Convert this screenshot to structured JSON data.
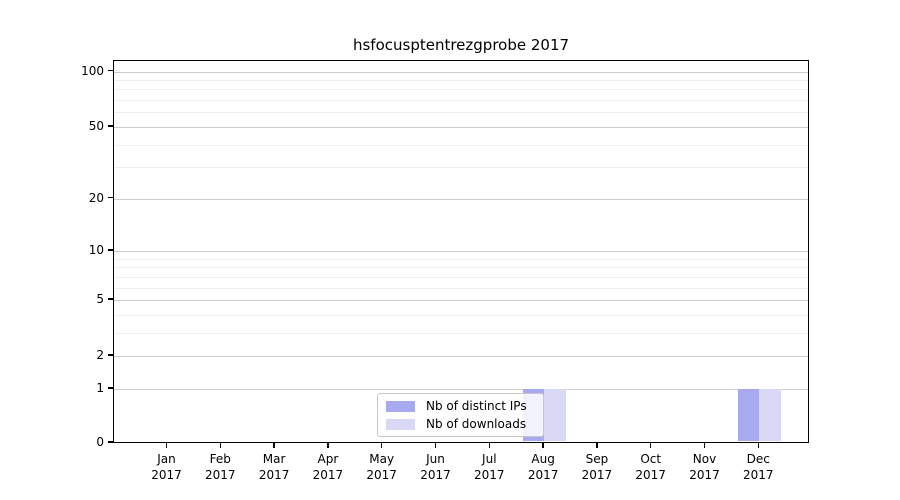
{
  "title": "hsfocusptentrezgprobe 2017",
  "chart_data": {
    "type": "bar",
    "title": "hsfocusptentrezgprobe 2017",
    "categories": [
      "Jan",
      "Feb",
      "Mar",
      "Apr",
      "May",
      "Jun",
      "Jul",
      "Aug",
      "Sep",
      "Oct",
      "Nov",
      "Dec"
    ],
    "year": "2017",
    "series": [
      {
        "name": "Nb of distinct IPs",
        "color": "#a9a9ef",
        "values": [
          0,
          0,
          0,
          0,
          0,
          0,
          0,
          1,
          0,
          0,
          0,
          1
        ]
      },
      {
        "name": "Nb of downloads",
        "color": "#d9d9f6",
        "values": [
          0,
          0,
          0,
          0,
          0,
          0,
          0,
          1,
          0,
          0,
          0,
          1
        ]
      }
    ],
    "y_scale": "log10(1+x)",
    "ylim": [
      0,
      112
    ],
    "y_major_ticks": [
      0,
      1,
      2,
      5,
      10,
      20,
      50,
      100
    ],
    "y_minor_gridlines": [
      3,
      4,
      6,
      7,
      8,
      9,
      30,
      40,
      60,
      70,
      80,
      90
    ],
    "grid": true,
    "legend_position": "bottom-center"
  },
  "colors": {
    "bar_distinct_ips": "#a9a9ef",
    "bar_downloads": "#d9d9f6",
    "grid_major": "#cccccc",
    "grid_minor": "#efefef",
    "axis": "#000000",
    "background": "#ffffff"
  }
}
